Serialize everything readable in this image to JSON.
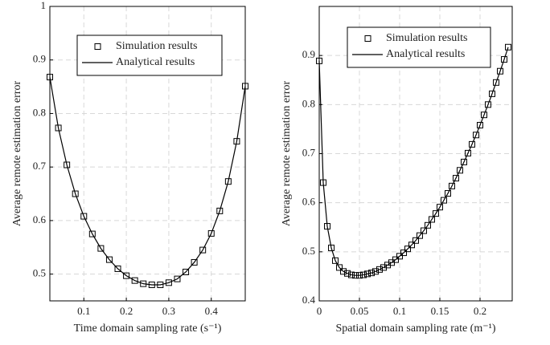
{
  "chart_data": [
    {
      "type": "line",
      "xlabel": "Time domain sampling rate (s⁻¹)",
      "ylabel": "Average remote estimation error",
      "x": [
        0.02,
        0.04,
        0.06,
        0.08,
        0.1,
        0.12,
        0.14,
        0.16,
        0.18,
        0.2,
        0.22,
        0.24,
        0.26,
        0.28,
        0.3,
        0.32,
        0.34,
        0.36,
        0.38,
        0.4,
        0.42,
        0.44,
        0.46,
        0.48
      ],
      "series": [
        {
          "name": "Simulation results",
          "color": "#000000",
          "marker": "square",
          "values": [
            0.868,
            0.773,
            0.704,
            0.65,
            0.608,
            0.575,
            0.548,
            0.527,
            0.51,
            0.497,
            0.488,
            0.482,
            0.48,
            0.48,
            0.484,
            0.491,
            0.504,
            0.522,
            0.545,
            0.576,
            0.618,
            0.673,
            0.748,
            0.851
          ]
        },
        {
          "name": "Analytical results",
          "color": "#000000",
          "marker": "none",
          "values": [
            0.868,
            0.773,
            0.704,
            0.65,
            0.608,
            0.575,
            0.548,
            0.527,
            0.51,
            0.497,
            0.488,
            0.482,
            0.48,
            0.48,
            0.484,
            0.491,
            0.504,
            0.522,
            0.545,
            0.576,
            0.618,
            0.673,
            0.748,
            0.851
          ]
        }
      ],
      "xlim": [
        0.02,
        0.48
      ],
      "xticks": [
        0.1,
        0.2,
        0.3,
        0.4
      ],
      "ylim": [
        0.45,
        1
      ],
      "yticks": [
        0.5,
        0.6,
        0.7,
        0.8,
        0.9,
        1
      ],
      "grid": true,
      "legend": "top"
    },
    {
      "type": "line",
      "xlabel": "Spatial domain sampling rate (m⁻¹)",
      "ylabel": "Average remote estimation error",
      "x": [
        0,
        0.005,
        0.01,
        0.015,
        0.02,
        0.025,
        0.03,
        0.035,
        0.04,
        0.045,
        0.05,
        0.055,
        0.06,
        0.065,
        0.07,
        0.075,
        0.08,
        0.085,
        0.09,
        0.095,
        0.1,
        0.105,
        0.11,
        0.115,
        0.12,
        0.125,
        0.13,
        0.135,
        0.14,
        0.145,
        0.15,
        0.155,
        0.16,
        0.165,
        0.17,
        0.175,
        0.18,
        0.185,
        0.19,
        0.195,
        0.2,
        0.205,
        0.21,
        0.215,
        0.22,
        0.225,
        0.23,
        0.235
      ],
      "series": [
        {
          "name": "Simulation results",
          "color": "#000000",
          "marker": "square",
          "values": [
            0.889,
            0.641,
            0.552,
            0.508,
            0.482,
            0.468,
            0.46,
            0.456,
            0.453,
            0.452,
            0.452,
            0.453,
            0.455,
            0.457,
            0.46,
            0.464,
            0.468,
            0.473,
            0.478,
            0.484,
            0.491,
            0.498,
            0.506,
            0.514,
            0.523,
            0.533,
            0.543,
            0.554,
            0.566,
            0.578,
            0.591,
            0.605,
            0.619,
            0.634,
            0.65,
            0.666,
            0.683,
            0.701,
            0.719,
            0.738,
            0.758,
            0.779,
            0.8,
            0.822,
            0.845,
            0.868,
            0.892,
            0.917
          ]
        },
        {
          "name": "Analytical results",
          "color": "#000000",
          "marker": "none",
          "values": [
            0.889,
            0.641,
            0.552,
            0.508,
            0.482,
            0.468,
            0.46,
            0.456,
            0.453,
            0.452,
            0.452,
            0.453,
            0.455,
            0.457,
            0.46,
            0.464,
            0.468,
            0.473,
            0.478,
            0.484,
            0.491,
            0.498,
            0.506,
            0.514,
            0.523,
            0.533,
            0.543,
            0.554,
            0.566,
            0.578,
            0.591,
            0.605,
            0.619,
            0.634,
            0.65,
            0.666,
            0.683,
            0.701,
            0.719,
            0.738,
            0.758,
            0.779,
            0.8,
            0.822,
            0.845,
            0.868,
            0.892,
            0.917
          ]
        }
      ],
      "xlim": [
        0,
        0.24
      ],
      "xticks": [
        0,
        0.05,
        0.1,
        0.15,
        0.2
      ],
      "ylim": [
        0.4,
        1
      ],
      "yticks": [
        0.4,
        0.5,
        0.6,
        0.7,
        0.8,
        0.9
      ],
      "grid": true,
      "legend": "top"
    }
  ]
}
